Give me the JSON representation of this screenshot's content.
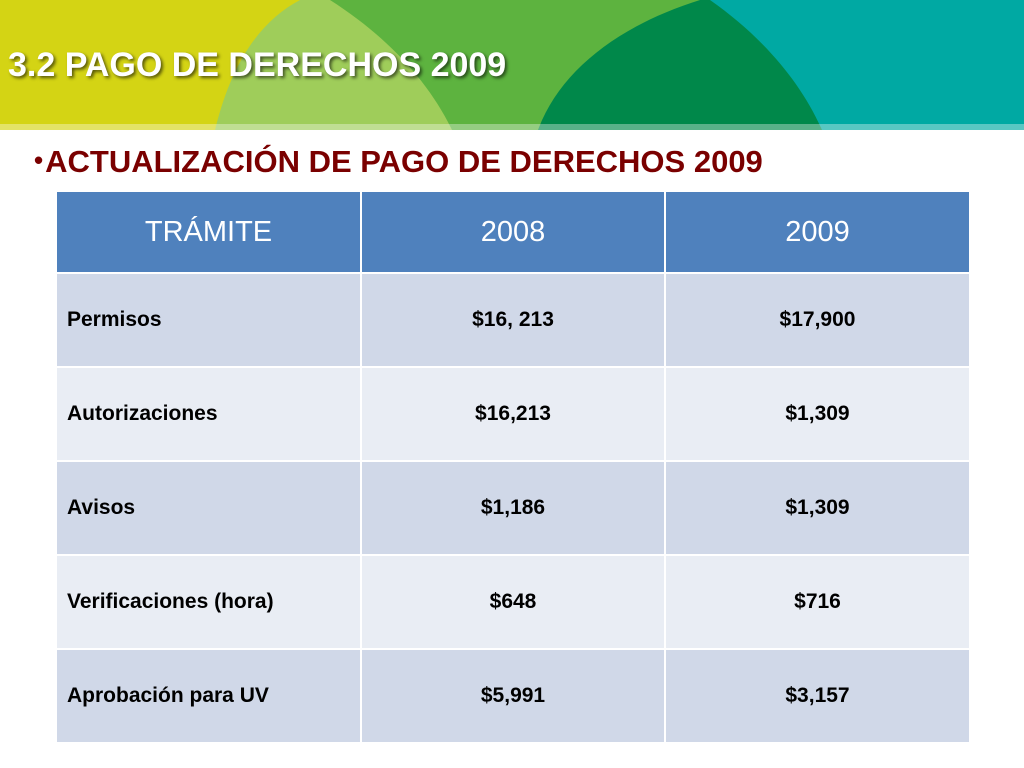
{
  "header": {
    "title": "3.2 PAGO DE DERECHOS 2009",
    "subtitle_bullet": "•",
    "subtitle": "ACTUALIZACIÓN DE PAGO DE DERECHOS 2009"
  },
  "colors": {
    "banner_yellow": "#d4d414",
    "banner_light_green": "#9fcd5a",
    "banner_green": "#5db33f",
    "banner_dark_green": "#00884a",
    "banner_teal": "#00a9a3",
    "title_text": "#ffffff",
    "subtitle_text": "#7a0000",
    "table_header": "#4f81bd",
    "row_dark": "#d0d8e8",
    "row_light": "#e9edf4"
  },
  "table": {
    "headers": [
      "TRÁMITE",
      "2008",
      "2009"
    ],
    "rows": [
      [
        "Permisos",
        "$16, 213",
        "$17,900"
      ],
      [
        "Autorizaciones",
        "$16,213",
        "$1,309"
      ],
      [
        "Avisos",
        "$1,186",
        "$1,309"
      ],
      [
        "Verificaciones (hora)",
        "$648",
        "$716"
      ],
      [
        "Aprobación para UV",
        "$5,991",
        "$3,157"
      ]
    ]
  }
}
